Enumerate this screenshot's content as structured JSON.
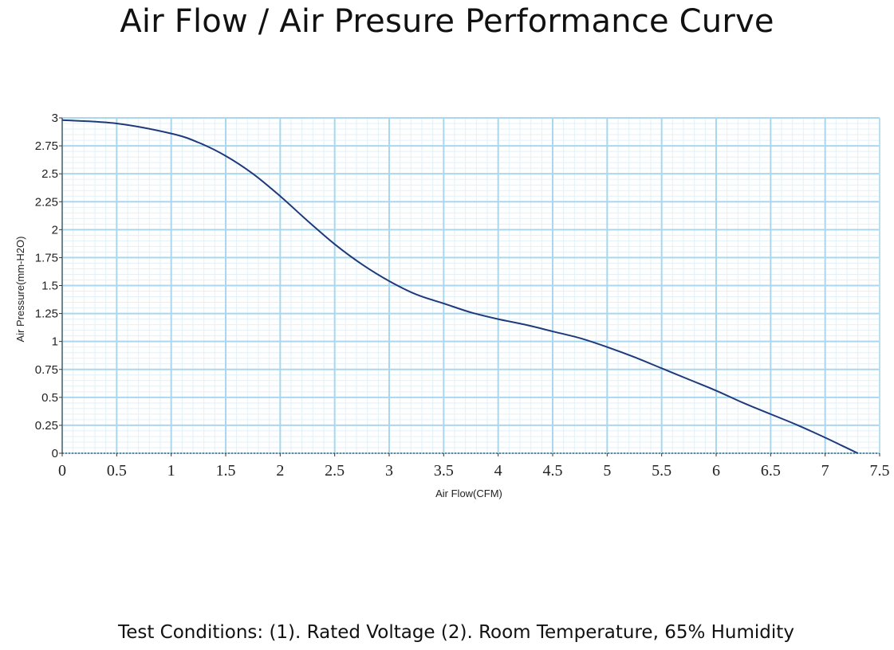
{
  "header": {
    "title": "Air Flow / Air Presure Performance Curve"
  },
  "footer": {
    "note": "Test Conditions:  (1). Rated Voltage  (2). Room Temperature, 65% Humidity"
  },
  "chart_data": {
    "type": "line",
    "title": "Air Flow / Air Presure Performance Curve",
    "xlabel": "Air Flow(CFM)",
    "ylabel": "Air Pressure(mm-H2O)",
    "xlim": [
      0,
      7.5
    ],
    "ylim": [
      0,
      3
    ],
    "xticks": [
      "0",
      "0.5",
      "1",
      "1.5",
      "2",
      "2.5",
      "3",
      "3.5",
      "4",
      "4.5",
      "5",
      "5.5",
      "6",
      "6.5",
      "7",
      "7.5"
    ],
    "yticks": [
      "0",
      "0.25",
      "0.5",
      "0.75",
      "1",
      "1.25",
      "1.5",
      "1.75",
      "2",
      "2.25",
      "2.5",
      "2.75",
      "3"
    ],
    "grid": true,
    "colors": {
      "line": "#1f3a7a",
      "grid_major": "#a9d8ee",
      "grid_minor": "#e2f1f8"
    },
    "series": [
      {
        "x": [
          0,
          0.5,
          1,
          1.25,
          1.5,
          1.75,
          2,
          2.25,
          2.5,
          2.75,
          3,
          3.25,
          3.5,
          3.75,
          4,
          4.25,
          4.5,
          4.75,
          5,
          5.25,
          5.5,
          5.75,
          6,
          6.25,
          6.5,
          6.75,
          7,
          7.15,
          7.3
        ],
        "y": [
          2.98,
          2.95,
          2.86,
          2.78,
          2.66,
          2.5,
          2.3,
          2.08,
          1.87,
          1.69,
          1.54,
          1.42,
          1.34,
          1.26,
          1.2,
          1.15,
          1.09,
          1.03,
          0.95,
          0.86,
          0.76,
          0.66,
          0.56,
          0.45,
          0.35,
          0.25,
          0.14,
          0.07,
          0.0
        ]
      }
    ]
  }
}
